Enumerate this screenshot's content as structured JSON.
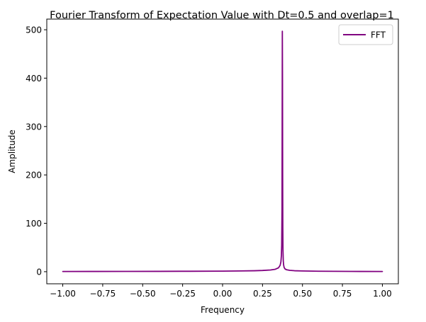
{
  "chart_data": {
    "type": "line",
    "title": "Fourier Transform of Expectation Value with Dt=0.5 and overlap=1",
    "xlabel": "Frequency",
    "ylabel": "Amplitude",
    "xlim": [
      -1.1,
      1.1
    ],
    "ylim": [
      -25,
      522
    ],
    "x_ticks": [
      -1.0,
      -0.75,
      -0.5,
      -0.25,
      0.0,
      0.25,
      0.5,
      0.75,
      1.0
    ],
    "x_tick_labels": [
      "−1.00",
      "−0.75",
      "−0.50",
      "−0.25",
      "0.00",
      "0.25",
      "0.50",
      "0.75",
      "1.00"
    ],
    "y_ticks": [
      0,
      100,
      200,
      300,
      400,
      500
    ],
    "y_tick_labels": [
      "0",
      "100",
      "200",
      "300",
      "400",
      "500"
    ],
    "grid": false,
    "legend": {
      "placement": "top-right",
      "entries": [
        "FFT"
      ]
    },
    "series": [
      {
        "name": "FFT",
        "color": "#800080",
        "x": [
          -1.0,
          -0.8,
          -0.6,
          -0.4,
          -0.2,
          0.0,
          0.1,
          0.2,
          0.25,
          0.3,
          0.33,
          0.35,
          0.36,
          0.365,
          0.368,
          0.37,
          0.372,
          0.373,
          0.374,
          0.375,
          0.376,
          0.377,
          0.378,
          0.38,
          0.382,
          0.385,
          0.39,
          0.4,
          0.42,
          0.45,
          0.5,
          0.6,
          0.8,
          1.0
        ],
        "values": [
          0.4,
          0.5,
          0.6,
          0.7,
          0.9,
          1.2,
          1.5,
          2.0,
          2.5,
          3.5,
          5.0,
          8.0,
          13.0,
          20.0,
          33.0,
          55.0,
          130.0,
          300.0,
          497.0,
          400.0,
          200.0,
          90.0,
          45.0,
          22.0,
          14.0,
          9.0,
          6.0,
          4.0,
          2.8,
          2.0,
          1.5,
          1.0,
          0.6,
          0.4
        ]
      }
    ]
  }
}
